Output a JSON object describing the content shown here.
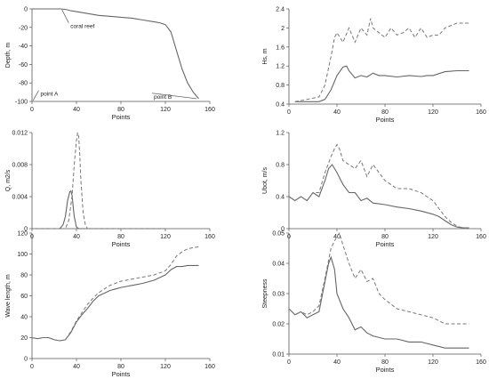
{
  "chart_data": [
    {
      "id": "depth",
      "type": "line",
      "xlabel": "Points",
      "ylabel": "Depth, m",
      "xlim": [
        0,
        160
      ],
      "ylim": [
        -100,
        0
      ],
      "xticks": [
        0,
        40,
        80,
        120,
        160
      ],
      "yticks": [
        -100,
        -80,
        -60,
        -40,
        -20,
        0
      ],
      "xtick_labels": [
        "0",
        "40",
        "80",
        "120",
        "160"
      ],
      "ytick_labels": [
        "-100",
        "-80",
        "-60",
        "-40",
        "-20",
        "0"
      ],
      "series": [
        {
          "style": "solid",
          "x": [
            0,
            10,
            20,
            25,
            30,
            35,
            40,
            50,
            60,
            70,
            80,
            90,
            100,
            110,
            115,
            120,
            125,
            130,
            135,
            140,
            145,
            150
          ],
          "y": [
            0,
            0,
            0,
            0,
            -0.5,
            -2,
            -3,
            -5,
            -7,
            -8,
            -9,
            -10,
            -12,
            -14,
            -15,
            -17,
            -25,
            -45,
            -65,
            -80,
            -90,
            -97
          ]
        }
      ],
      "annotations": [
        {
          "text": "coral reef",
          "x": 27,
          "y": -1,
          "tx": 33,
          "ty": -18
        },
        {
          "text": "point A",
          "x": 1,
          "y": -99,
          "tx": 6,
          "ty": -91
        },
        {
          "text": "point B",
          "x": 148,
          "y": -97,
          "tx": 108,
          "ty": -94
        }
      ]
    },
    {
      "id": "hs",
      "type": "line",
      "xlabel": "Points",
      "ylabel": "Hs, m",
      "xlim": [
        0,
        160
      ],
      "ylim": [
        0.4,
        2.4
      ],
      "xticks": [
        0,
        40,
        80,
        120,
        160
      ],
      "yticks": [
        0.4,
        0.8,
        1.2,
        1.6,
        2.0,
        2.4
      ],
      "xtick_labels": [
        "0",
        "40",
        "80",
        "120",
        "160"
      ],
      "ytick_labels": [
        "0.4",
        "0.8",
        "1.2",
        "1.6",
        "2",
        "2.4"
      ],
      "series": [
        {
          "style": "solid",
          "x": [
            5,
            15,
            25,
            30,
            35,
            40,
            45,
            48,
            50,
            55,
            60,
            65,
            70,
            75,
            80,
            90,
            100,
            110,
            115,
            120,
            130,
            140,
            150
          ],
          "y": [
            0.45,
            0.45,
            0.45,
            0.5,
            0.7,
            1.0,
            1.18,
            1.2,
            1.1,
            0.95,
            1.0,
            0.97,
            1.05,
            1.0,
            1.0,
            0.97,
            1.0,
            0.98,
            1.0,
            1.0,
            1.08,
            1.1,
            1.1
          ]
        },
        {
          "style": "dashed",
          "x": [
            5,
            15,
            25,
            30,
            35,
            38,
            40,
            45,
            50,
            55,
            60,
            65,
            68,
            70,
            75,
            80,
            85,
            90,
            95,
            100,
            105,
            110,
            115,
            120,
            125,
            130,
            140,
            150
          ],
          "y": [
            0.45,
            0.5,
            0.55,
            0.8,
            1.4,
            1.8,
            1.9,
            1.7,
            2.0,
            1.7,
            2.0,
            1.85,
            2.2,
            2.0,
            1.9,
            1.8,
            2.0,
            1.85,
            1.9,
            2.0,
            1.8,
            2.0,
            1.8,
            1.85,
            1.85,
            2.0,
            2.1,
            2.1
          ]
        }
      ]
    },
    {
      "id": "q",
      "type": "line",
      "xlabel": "Points",
      "ylabel": "Q, m2/s",
      "xlim": [
        0,
        160
      ],
      "ylim": [
        0,
        0.012
      ],
      "xticks": [
        0,
        40,
        80,
        120,
        160
      ],
      "yticks": [
        0,
        0.004,
        0.008,
        0.012
      ],
      "xtick_labels": [
        "0",
        "40",
        "80",
        "120",
        "160"
      ],
      "ytick_labels": [
        "0",
        "0.004",
        "0.008",
        "0.012"
      ],
      "series": [
        {
          "style": "solid",
          "x": [
            0,
            25,
            28,
            30,
            32,
            34,
            35,
            36,
            38,
            40,
            42,
            45,
            120
          ],
          "y": [
            0,
            0,
            0.0005,
            0.0015,
            0.0035,
            0.0046,
            0.0047,
            0.0042,
            0.0015,
            0.0002,
            0,
            0,
            0
          ]
        },
        {
          "style": "dashed",
          "x": [
            0,
            30,
            33,
            36,
            38,
            40,
            41,
            42,
            43,
            44,
            46,
            48,
            50,
            120
          ],
          "y": [
            0,
            0,
            0.001,
            0.004,
            0.008,
            0.011,
            0.012,
            0.0115,
            0.009,
            0.006,
            0.002,
            0.0005,
            0,
            0
          ]
        }
      ]
    },
    {
      "id": "ubot",
      "type": "line",
      "xlabel": "Points",
      "ylabel": "Ubot, m/s",
      "xlim": [
        0,
        160
      ],
      "ylim": [
        0,
        1.2
      ],
      "xticks": [
        0,
        40,
        80,
        120,
        160
      ],
      "yticks": [
        0,
        0.4,
        0.8,
        1.2
      ],
      "xtick_labels": [
        "0",
        "40",
        "80",
        "120",
        "160"
      ],
      "ytick_labels": [
        "0",
        "0.4",
        "0.8",
        "1.2"
      ],
      "series": [
        {
          "style": "solid",
          "x": [
            0,
            5,
            10,
            15,
            20,
            25,
            30,
            33,
            36,
            40,
            45,
            50,
            55,
            60,
            65,
            70,
            80,
            90,
            100,
            110,
            120,
            125,
            130,
            135,
            140,
            145,
            150
          ],
          "y": [
            0.4,
            0.35,
            0.4,
            0.35,
            0.45,
            0.4,
            0.6,
            0.75,
            0.8,
            0.7,
            0.55,
            0.45,
            0.45,
            0.35,
            0.38,
            0.32,
            0.3,
            0.27,
            0.25,
            0.22,
            0.18,
            0.15,
            0.1,
            0.05,
            0.02,
            0.01,
            0.01
          ]
        },
        {
          "style": "dashed",
          "x": [
            0,
            5,
            10,
            15,
            20,
            25,
            30,
            35,
            38,
            40,
            42,
            45,
            50,
            55,
            60,
            65,
            70,
            75,
            80,
            90,
            100,
            110,
            120,
            125,
            130,
            135,
            140,
            145,
            150
          ],
          "y": [
            0.4,
            0.35,
            0.4,
            0.35,
            0.45,
            0.45,
            0.7,
            0.9,
            1.0,
            1.05,
            1.0,
            0.85,
            0.8,
            0.75,
            0.85,
            0.65,
            0.8,
            0.7,
            0.6,
            0.5,
            0.5,
            0.45,
            0.35,
            0.25,
            0.15,
            0.08,
            0.03,
            0.01,
            0.01
          ]
        }
      ]
    },
    {
      "id": "wavelength",
      "type": "line",
      "xlabel": "Points",
      "ylabel": "Wave length, m",
      "xlim": [
        0,
        160
      ],
      "ylim": [
        0,
        120
      ],
      "xticks": [
        0,
        40,
        80,
        120,
        160
      ],
      "yticks": [
        0,
        20,
        40,
        60,
        80,
        100,
        120
      ],
      "xtick_labels": [
        "0",
        "40",
        "80",
        "120",
        "160"
      ],
      "ytick_labels": [
        "0",
        "20",
        "40",
        "60",
        "80",
        "100",
        "120"
      ],
      "series": [
        {
          "style": "solid",
          "x": [
            0,
            5,
            10,
            15,
            20,
            25,
            30,
            35,
            40,
            45,
            50,
            55,
            60,
            70,
            80,
            90,
            100,
            110,
            120,
            125,
            130,
            135,
            140,
            150
          ],
          "y": [
            20,
            19,
            20,
            20,
            18,
            17,
            18,
            25,
            35,
            42,
            48,
            55,
            60,
            65,
            68,
            70,
            72,
            75,
            80,
            85,
            88,
            88,
            89,
            89
          ]
        },
        {
          "style": "dashed",
          "x": [
            0,
            5,
            10,
            15,
            20,
            25,
            30,
            35,
            40,
            45,
            50,
            55,
            60,
            70,
            80,
            90,
            100,
            110,
            120,
            125,
            130,
            135,
            140,
            150
          ],
          "y": [
            20,
            19,
            20,
            20,
            18,
            17,
            18,
            26,
            36,
            44,
            52,
            58,
            63,
            70,
            74,
            76,
            78,
            80,
            84,
            90,
            98,
            102,
            105,
            107
          ]
        }
      ]
    },
    {
      "id": "steepness",
      "type": "line",
      "xlabel": "Points",
      "ylabel": "Steepness",
      "xlim": [
        0,
        160
      ],
      "ylim": [
        0.01,
        0.05
      ],
      "xticks": [
        0,
        40,
        80,
        120,
        160
      ],
      "yticks": [
        0.01,
        0.02,
        0.03,
        0.04,
        0.05
      ],
      "xtick_labels": [
        "0",
        "40",
        "80",
        "120",
        "160"
      ],
      "ytick_labels": [
        "0.01",
        "0.02",
        "0.03",
        "0.04",
        "0.05"
      ],
      "series": [
        {
          "style": "solid",
          "x": [
            0,
            5,
            10,
            15,
            20,
            25,
            30,
            33,
            35,
            38,
            40,
            45,
            50,
            55,
            60,
            65,
            70,
            80,
            90,
            100,
            110,
            120,
            130,
            140,
            150
          ],
          "y": [
            0.025,
            0.023,
            0.024,
            0.022,
            0.023,
            0.024,
            0.034,
            0.04,
            0.042,
            0.038,
            0.03,
            0.025,
            0.022,
            0.018,
            0.019,
            0.017,
            0.016,
            0.015,
            0.015,
            0.014,
            0.014,
            0.013,
            0.012,
            0.012,
            0.012
          ]
        },
        {
          "style": "dashed",
          "x": [
            0,
            5,
            10,
            15,
            20,
            25,
            30,
            35,
            40,
            42,
            45,
            50,
            55,
            60,
            65,
            70,
            75,
            80,
            90,
            100,
            110,
            120,
            130,
            140,
            150
          ],
          "y": [
            0.025,
            0.023,
            0.024,
            0.023,
            0.024,
            0.026,
            0.035,
            0.045,
            0.049,
            0.05,
            0.046,
            0.04,
            0.035,
            0.038,
            0.034,
            0.035,
            0.03,
            0.028,
            0.025,
            0.024,
            0.023,
            0.022,
            0.02,
            0.02,
            0.02
          ]
        }
      ]
    }
  ]
}
